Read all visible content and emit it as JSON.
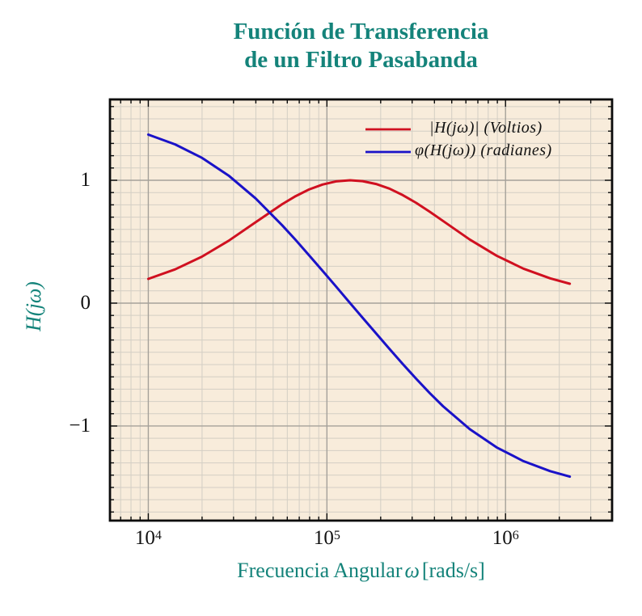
{
  "title": {
    "line1": "Función de Transferencia",
    "line2": "de un Filtro Pasabanda"
  },
  "colors": {
    "teal": "#14837a",
    "magnitude_red": "#d01020",
    "phase_blue": "#1a12c8",
    "plot_background": "#f8ecdb",
    "grid_major": "#a5a19a",
    "grid_minor": "#d3cec4",
    "frame": "#0b0b0b"
  },
  "axes": {
    "x": {
      "scale": "log",
      "min": 6100,
      "max": 3950000,
      "major": [
        10000,
        100000,
        1000000
      ],
      "tick_labels": [
        {
          "base": "10",
          "exp": "4"
        },
        {
          "base": "10",
          "exp": "5"
        },
        {
          "base": "10",
          "exp": "6"
        }
      ]
    },
    "y": {
      "scale": "linear",
      "min": -1.77,
      "max": 1.658,
      "major": [
        1,
        0,
        -1
      ],
      "labels": [
        "1",
        "0",
        "−1"
      ],
      "minor_step": 0.1
    }
  },
  "x_axis_label": {
    "prefix": "Frecuencia Angular",
    "omega": "ω",
    "suffix": "[rads/s]"
  },
  "y_axis_label": "H(jω)",
  "legend": {
    "items": [
      {
        "label": "|H(jω)| (Voltios)",
        "color": "#d01020"
      },
      {
        "label": "φ(H(jω)) (radianes)",
        "color": "#1a12c8"
      }
    ]
  },
  "chart_data": {
    "type": "line",
    "title": "Función de Transferencia de un Filtro Pasabanda",
    "xlabel": "Frecuencia Angular ω [rads/s]",
    "ylabel": "H(jω)",
    "x_scale": "log",
    "x_range": [
      6100,
      3950000
    ],
    "y_range": [
      -1.77,
      1.658
    ],
    "grid": "both",
    "legend_position": "upper right",
    "series": [
      {
        "name": "|H(jω)| (Voltios)",
        "color": "#d01020",
        "points": [
          [
            10000,
            0.197
          ],
          [
            14130,
            0.275
          ],
          [
            19950,
            0.378
          ],
          [
            28180,
            0.508
          ],
          [
            39810,
            0.658
          ],
          [
            56230,
            0.806
          ],
          [
            66830,
            0.871
          ],
          [
            79430,
            0.925
          ],
          [
            94410,
            0.965
          ],
          [
            112200,
            0.991
          ],
          [
            134900,
            1.0
          ],
          [
            158500,
            0.993
          ],
          [
            188400,
            0.97
          ],
          [
            223900,
            0.932
          ],
          [
            266100,
            0.879
          ],
          [
            316200,
            0.816
          ],
          [
            376000,
            0.744
          ],
          [
            446700,
            0.669
          ],
          [
            631000,
            0.518
          ],
          [
            891300,
            0.386
          ],
          [
            1259000,
            0.281
          ],
          [
            1778000,
            0.202
          ],
          [
            2291000,
            0.158
          ]
        ]
      },
      {
        "name": "φ(H(jω)) (radianes)",
        "color": "#1a12c8",
        "points": [
          [
            10000,
            1.372
          ],
          [
            14130,
            1.292
          ],
          [
            19950,
            1.183
          ],
          [
            28180,
            1.038
          ],
          [
            39810,
            0.853
          ],
          [
            56230,
            0.633
          ],
          [
            66830,
            0.514
          ],
          [
            79430,
            0.39
          ],
          [
            94410,
            0.264
          ],
          [
            112200,
            0.137
          ],
          [
            134900,
            0.0
          ],
          [
            158500,
            -0.119
          ],
          [
            188400,
            -0.246
          ],
          [
            223900,
            -0.372
          ],
          [
            266100,
            -0.496
          ],
          [
            316200,
            -0.616
          ],
          [
            376000,
            -0.732
          ],
          [
            446700,
            -0.839
          ],
          [
            631000,
            -1.026
          ],
          [
            891300,
            -1.174
          ],
          [
            1259000,
            -1.286
          ],
          [
            1778000,
            -1.367
          ],
          [
            2291000,
            -1.412
          ]
        ]
      }
    ]
  }
}
